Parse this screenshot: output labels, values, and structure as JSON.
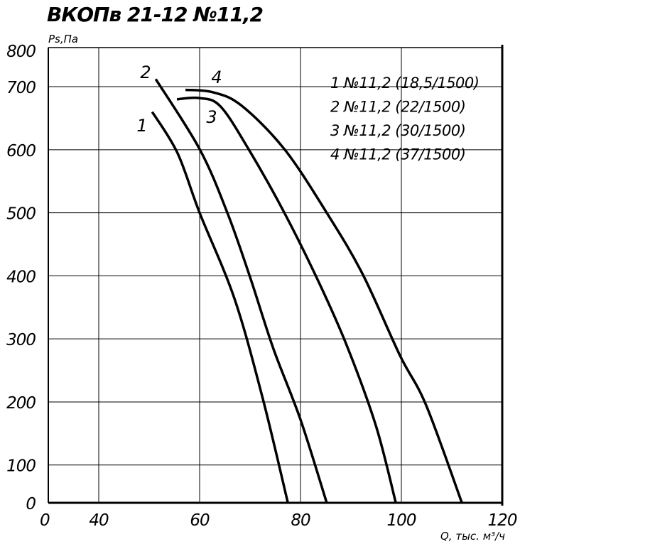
{
  "chart_data": {
    "type": "line",
    "title": "ВКОПв 21-12 №11,2",
    "y_label": "Ps,Па",
    "x_label": "Q, тыс. м³/ч",
    "xlim": [
      30,
      120
    ],
    "xticks": [
      40,
      60,
      80,
      100,
      120
    ],
    "ylim": [
      40,
      762
    ],
    "yticks": [
      100,
      200,
      300,
      400,
      500,
      600,
      700
    ],
    "x_axis_start_label": "0",
    "y_axis_start_label": "0",
    "y_axis_end_label": "800",
    "grid": true,
    "curve_labels": [
      "1",
      "2",
      "3",
      "4"
    ],
    "series": [
      {
        "name": "1 №11,2 (18,5/1500)",
        "color": "#000000",
        "x": [
          50.6,
          55.6,
          60,
          66.9,
          72.5,
          77.5
        ],
        "values": [
          660,
          595,
          500,
          364,
          206,
          40
        ]
      },
      {
        "name": "2 №11,2 (22/1500)",
        "color": "#000000",
        "x": [
          51.3,
          60,
          65.5,
          70,
          74.6,
          80,
          85.2
        ],
        "values": [
          712,
          601,
          500,
          398,
          285,
          172,
          40
        ]
      },
      {
        "name": "3 №11,2 (30/1500)",
        "color": "#000000",
        "x": [
          55.5,
          59.9,
          64.1,
          69.7,
          76.8,
          83.8,
          89.4,
          95,
          98.9
        ],
        "values": [
          680,
          682,
          669,
          601,
          500,
          387,
          285,
          161,
          40
        ]
      },
      {
        "name": "4 №11,2 (37/1500)",
        "color": "#000000",
        "x": [
          57.2,
          62.7,
          68.3,
          76.8,
          85.2,
          92.3,
          99.7,
          104.9,
          112
        ],
        "values": [
          695,
          691,
          670,
          601,
          500,
          403,
          274,
          195,
          40
        ]
      }
    ]
  }
}
